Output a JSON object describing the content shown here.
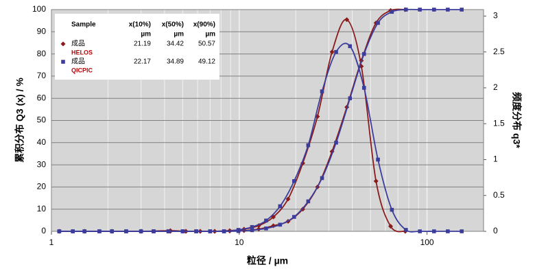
{
  "chart_data": {
    "type": "line",
    "xlabel": "粒径 / µm",
    "ylabel": "累积分布 Q3 (x) / %",
    "y2label": "频度分布 q3*",
    "xlog": true,
    "xlim": [
      1,
      200
    ],
    "xticks": [
      1,
      10,
      100
    ],
    "xminorticks": [
      2,
      3,
      4,
      5,
      6,
      7,
      8,
      9,
      20,
      30,
      40,
      50,
      60,
      70,
      80,
      90,
      200
    ],
    "ylim": [
      0,
      100
    ],
    "yticks": [
      0,
      10,
      20,
      30,
      40,
      50,
      60,
      70,
      80,
      90,
      100
    ],
    "y2lim": [
      0,
      3.09
    ],
    "y2ticks": [
      0,
      0.5,
      1,
      1.5,
      2,
      2.5,
      3
    ],
    "grid": true,
    "series": [
      {
        "color": "#8b1a1a",
        "marker": "diamond",
        "x": [
          1.1,
          1.5,
          2.1,
          3.0,
          4.3,
          5.2,
          6.2,
          7.4,
          8.9,
          10.6,
          12.7,
          15.2,
          18.2,
          21.8,
          26.1,
          31.2,
          37.4,
          44.7,
          53.5,
          64,
          76.6
        ],
        "values": [
          0,
          0,
          0,
          0,
          0.3,
          0,
          0,
          0,
          0.1,
          0.3,
          1.0,
          2.5,
          4.5,
          10,
          20,
          36,
          56,
          77,
          94,
          99.6,
          100
        ]
      },
      {
        "color": "#8b1a1a",
        "marker": "diamond",
        "axis": "y2",
        "x": [
          1.1,
          1.5,
          2.1,
          3.0,
          4.3,
          5.2,
          6.2,
          7.4,
          8.9,
          10.6,
          12.7,
          15.2,
          18.2,
          21.8,
          26.1,
          31.2,
          37.4,
          44.7,
          53.5,
          64,
          76.6
        ],
        "values": [
          0,
          0,
          0,
          0,
          0,
          0,
          0,
          0,
          0.01,
          0.03,
          0.08,
          0.2,
          0.45,
          0.95,
          1.6,
          2.5,
          2.95,
          2.3,
          0.7,
          0.07,
          0
        ]
      },
      {
        "color": "#3c3c9c",
        "marker": "square",
        "x": [
          1.1,
          1.3,
          1.5,
          1.8,
          2.1,
          2.5,
          3.0,
          3.5,
          4.2,
          5.0,
          5.9,
          7.0,
          8.3,
          9.9,
          11.7,
          13.9,
          16.5,
          19.6,
          23.3,
          27.6,
          32.8,
          38.9,
          46.2,
          54.8,
          65,
          77.2,
          91.6,
          109,
          129,
          153
        ],
        "values": [
          0,
          0,
          0,
          0,
          0,
          0,
          0,
          0,
          0,
          0,
          0,
          0,
          0,
          0.1,
          0.5,
          1.3,
          3,
          6.5,
          13.5,
          24,
          40,
          60,
          80,
          94,
          99,
          100,
          100,
          100,
          100,
          100
        ]
      },
      {
        "color": "#3c3c9c",
        "marker": "square",
        "axis": "y2",
        "x": [
          1.1,
          1.3,
          1.5,
          1.8,
          2.1,
          2.5,
          3.0,
          3.5,
          4.2,
          5.0,
          5.9,
          7.0,
          8.3,
          9.9,
          11.7,
          13.9,
          16.5,
          19.6,
          23.3,
          27.6,
          32.8,
          38.9,
          46.2,
          54.8,
          65,
          77.2,
          91.6,
          109,
          129,
          153
        ],
        "values": [
          0,
          0,
          0,
          0,
          0,
          0,
          0,
          0,
          0,
          0,
          0,
          0,
          0,
          0.02,
          0.06,
          0.15,
          0.35,
          0.7,
          1.2,
          1.95,
          2.5,
          2.58,
          2.0,
          1.0,
          0.3,
          0.02,
          0,
          0,
          0,
          0
        ]
      }
    ],
    "legend": {
      "columns": [
        "Sample",
        "x(10%)",
        "x(50%)",
        "x(90%)"
      ],
      "units": [
        "µm",
        "µm",
        "µm"
      ],
      "rows": [
        {
          "name": "成品",
          "method": "HELOS",
          "values": [
            21.19,
            34.42,
            50.57
          ]
        },
        {
          "name": "成品",
          "method": "QICPIC",
          "values": [
            22.17,
            34.89,
            49.12
          ]
        }
      ]
    }
  }
}
